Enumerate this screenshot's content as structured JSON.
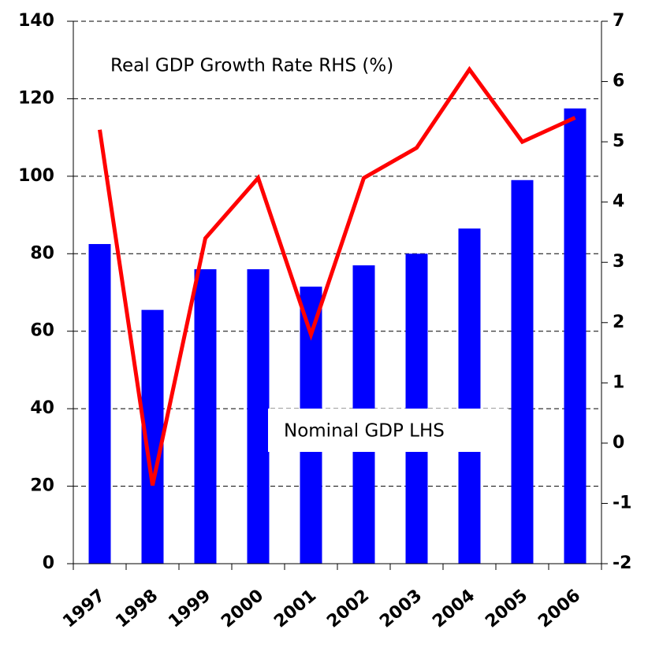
{
  "chart_data": {
    "type": "bar",
    "categories": [
      "1997",
      "1998",
      "1999",
      "2000",
      "2001",
      "2002",
      "2003",
      "2004",
      "2005",
      "2006"
    ],
    "series": [
      {
        "name": "Nominal GDP LHS",
        "type": "bar",
        "color": "#0000ff",
        "values": [
          82.5,
          65.5,
          76,
          76,
          71.5,
          77,
          80,
          86.5,
          99,
          117.5
        ]
      },
      {
        "name": "Real GDP Growth Rate RHS (%)",
        "type": "line",
        "axis": "y2",
        "color": "#ff0000",
        "values": [
          5.2,
          -0.7,
          3.4,
          4.4,
          1.8,
          4.4,
          4.9,
          6.2,
          5.0,
          5.4
        ]
      }
    ],
    "ylim": [
      0,
      140
    ],
    "yticks": [
      0,
      20,
      40,
      60,
      80,
      100,
      120,
      140
    ],
    "y2lim": [
      -2,
      7
    ],
    "y2ticks": [
      -2,
      -1,
      0,
      1,
      2,
      3,
      4,
      5,
      6,
      7
    ],
    "grid": true
  }
}
